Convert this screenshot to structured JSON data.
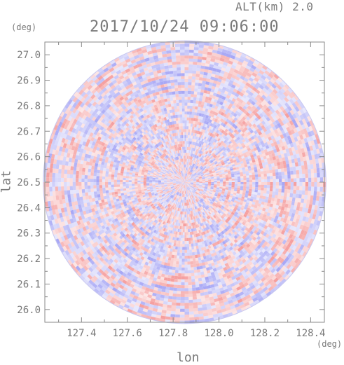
{
  "header": {
    "alt_label": "ALT(km) 2.0",
    "datetime": "2017/10/24 09:06:00"
  },
  "chart_data": {
    "type": "heatmap",
    "title": "2017/10/24 09:06:00",
    "subtitle": "ALT(km) 2.0",
    "xlabel": "lon",
    "ylabel": "lat",
    "x_unit": "(deg)",
    "y_unit": "(deg)",
    "xlim": [
      127.24,
      128.46
    ],
    "ylim": [
      25.95,
      27.05
    ],
    "x_ticks": [
      127.4,
      127.6,
      127.8,
      128.0,
      128.2,
      128.4
    ],
    "x_tick_labels": [
      "127.4",
      "127.6",
      "127.8",
      "128.0",
      "128.2",
      "128.4"
    ],
    "y_ticks": [
      26.0,
      26.1,
      26.2,
      26.3,
      26.4,
      26.5,
      26.6,
      26.7,
      26.8,
      26.9,
      27.0
    ],
    "y_tick_labels": [
      "26.0",
      "26.1",
      "26.2",
      "26.3",
      "26.4",
      "26.5",
      "26.6",
      "26.7",
      "26.8",
      "26.9",
      "27.0"
    ],
    "radar_center": {
      "lon": 127.85,
      "lat": 26.5
    },
    "radar_radius_deg_lat": 0.555,
    "colormap": {
      "positive": "#f5a0a0",
      "negative": "#a8a8f5",
      "neutral": "#ffffff"
    },
    "grid": false,
    "legend": "none"
  },
  "colors": {
    "axis": "#8a8a8a",
    "text": "#7a7a7a"
  }
}
